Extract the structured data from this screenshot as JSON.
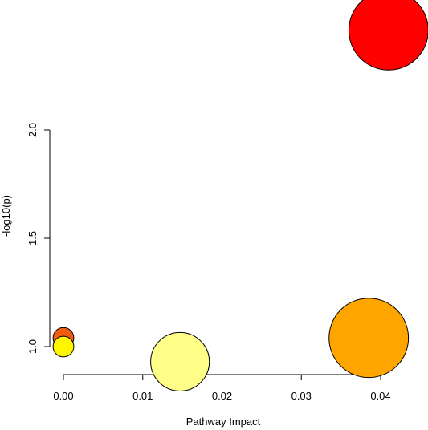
{
  "chart_data": {
    "type": "scatter",
    "title": "",
    "xlabel": "Pathway Impact",
    "ylabel": "-log10(p)",
    "xlim": [
      -0.0015,
      0.043
    ],
    "ylim": [
      0.875,
      2.62
    ],
    "xticks": [
      0.0,
      0.01,
      0.02,
      0.03,
      0.04
    ],
    "xtick_labels": [
      "0.00",
      "0.01",
      "0.02",
      "0.03",
      "0.04"
    ],
    "yticks": [
      1.0,
      1.5,
      2.0
    ],
    "ytick_labels": [
      "1.0",
      "1.5",
      "2.0"
    ],
    "grid": false,
    "legend": "none",
    "points": [
      {
        "x": 0.0,
        "y": 1.04,
        "size": 0.3,
        "color": "#F25C0F"
      },
      {
        "x": 0.0,
        "y": 1.0,
        "size": 0.3,
        "color": "#FFF700"
      },
      {
        "x": 0.0147,
        "y": 0.93,
        "size": 0.85,
        "color": "#FFFF88"
      },
      {
        "x": 0.0385,
        "y": 1.04,
        "size": 1.15,
        "color": "#FFA500"
      },
      {
        "x": 0.041,
        "y": 2.46,
        "size": 1.15,
        "color": "#FF0000"
      }
    ]
  }
}
